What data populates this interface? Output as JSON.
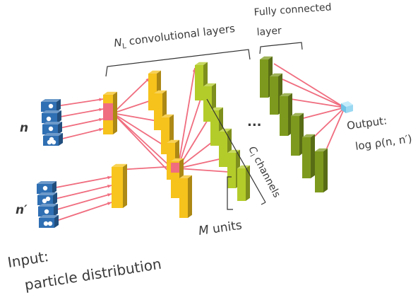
{
  "labels": {
    "fully_connected_1": "Fully connected",
    "fully_connected_2": "layer",
    "conv_N": "N",
    "conv_sub": "L",
    "conv_rest": " convolutional layers",
    "input_n": "n",
    "input_nprime": "n′",
    "ellipsis": "...",
    "channels_c": "C",
    "channels_sub": "l",
    "channels_rest": " channels",
    "units_M": "M",
    "units_rest": " units",
    "output_1": "Output:",
    "output_2": "log ρ(n, n′)",
    "input_caption_1": "Input:",
    "input_caption_2": "particle distribution"
  },
  "colors": {
    "connection": "#f06d7f",
    "input_block": "#2f6fb3",
    "yellow_col": "#f6c21c",
    "yellowgreen_col": "#b4cc2a",
    "olive_col": "#7e9a1e",
    "output_node": "#9ad8f2",
    "bracket": "#333333"
  }
}
